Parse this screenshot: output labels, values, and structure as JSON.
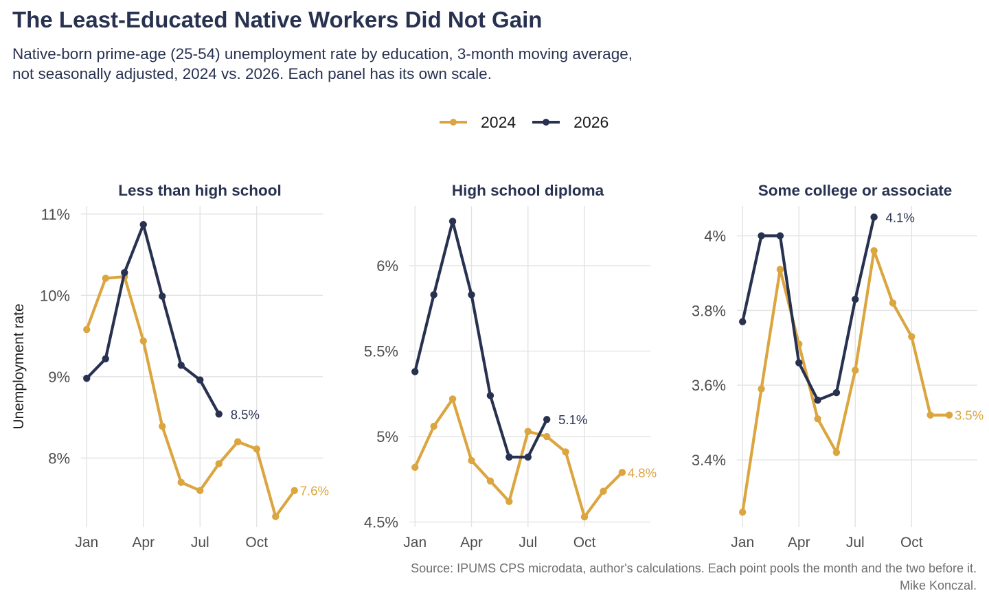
{
  "title": "The Least-Educated Native Workers Did Not Gain",
  "subtitle_lines": [
    "Native-born prime-age (25-54) unemployment rate by education, 3-month moving average,",
    "not seasonally adjusted, 2024 vs. 2026. Each panel has its own scale."
  ],
  "caption_lines": [
    "Source: IPUMS CPS microdata, author's calculations. Each point pools the month and the two before it.",
    "Mike Konczal."
  ],
  "legend": [
    {
      "label": "2024",
      "color": "#DBA53F"
    },
    {
      "label": "2026",
      "color": "#283250"
    }
  ],
  "colors": {
    "y2024": "#DBA53F",
    "y2026": "#283250",
    "grid": "#e3e3e3",
    "axis_text": "#4d4d4d"
  },
  "chart_data": [
    {
      "type": "line",
      "title": "Less than high school",
      "ylabel": "Unemployment rate",
      "x_months": [
        1,
        2,
        3,
        4,
        5,
        6,
        7,
        8,
        9,
        10,
        11,
        12
      ],
      "xticks": [
        {
          "x": 1,
          "label": "Jan"
        },
        {
          "x": 4,
          "label": "Apr"
        },
        {
          "x": 7,
          "label": "Jul"
        },
        {
          "x": 10,
          "label": "Oct"
        }
      ],
      "yticks": [
        {
          "v": 8,
          "label": "8%"
        },
        {
          "v": 9,
          "label": "9%"
        },
        {
          "v": 10,
          "label": "10%"
        },
        {
          "v": 11,
          "label": "11%"
        }
      ],
      "ylim": [
        7.15,
        11.1
      ],
      "series": [
        {
          "name": "2024",
          "values": [
            9.58,
            10.21,
            10.23,
            9.44,
            8.39,
            7.7,
            7.6,
            7.93,
            8.2,
            8.11,
            7.28,
            7.6
          ],
          "end_label": "7.6%"
        },
        {
          "name": "2026",
          "values": [
            8.98,
            9.22,
            10.28,
            10.87,
            9.99,
            9.14,
            8.96,
            8.54
          ],
          "end_label": "8.5%"
        }
      ]
    },
    {
      "type": "line",
      "title": "High school diploma",
      "ylabel": "",
      "x_months": [
        1,
        2,
        3,
        4,
        5,
        6,
        7,
        8,
        9,
        10,
        11,
        12
      ],
      "xticks": [
        {
          "x": 1,
          "label": "Jan"
        },
        {
          "x": 4,
          "label": "Apr"
        },
        {
          "x": 7,
          "label": "Jul"
        },
        {
          "x": 10,
          "label": "Oct"
        }
      ],
      "yticks": [
        {
          "v": 4.5,
          "label": "4.5%"
        },
        {
          "v": 5,
          "label": "5%"
        },
        {
          "v": 5.5,
          "label": "5.5%"
        },
        {
          "v": 6,
          "label": "6%"
        }
      ],
      "ylim": [
        4.47,
        6.35
      ],
      "series": [
        {
          "name": "2024",
          "values": [
            4.82,
            5.06,
            5.22,
            4.86,
            4.74,
            4.62,
            5.03,
            5.0,
            4.91,
            4.53,
            4.68,
            4.79
          ],
          "end_label": "4.8%"
        },
        {
          "name": "2026",
          "values": [
            5.38,
            5.83,
            6.26,
            5.83,
            5.24,
            4.88,
            4.88,
            5.1
          ],
          "end_label": "5.1%"
        }
      ]
    },
    {
      "type": "line",
      "title": "Some college or associate",
      "ylabel": "",
      "x_months": [
        1,
        2,
        3,
        4,
        5,
        6,
        7,
        8,
        9,
        10,
        11,
        12
      ],
      "xticks": [
        {
          "x": 1,
          "label": "Jan"
        },
        {
          "x": 4,
          "label": "Apr"
        },
        {
          "x": 7,
          "label": "Jul"
        },
        {
          "x": 10,
          "label": "Oct"
        }
      ],
      "yticks": [
        {
          "v": 3.4,
          "label": "3.4%"
        },
        {
          "v": 3.6,
          "label": "3.6%"
        },
        {
          "v": 3.8,
          "label": "3.8%"
        },
        {
          "v": 4.0,
          "label": "4%"
        }
      ],
      "ylim": [
        3.22,
        4.08
      ],
      "series": [
        {
          "name": "2024",
          "values": [
            3.26,
            3.59,
            3.91,
            3.71,
            3.51,
            3.42,
            3.64,
            3.96,
            3.82,
            3.73,
            3.52,
            3.52
          ],
          "end_label": "3.5%"
        },
        {
          "name": "2026",
          "values": [
            3.77,
            4.0,
            4.0,
            3.66,
            3.56,
            3.58,
            3.83,
            4.05
          ],
          "end_label": "4.1%"
        }
      ]
    }
  ]
}
